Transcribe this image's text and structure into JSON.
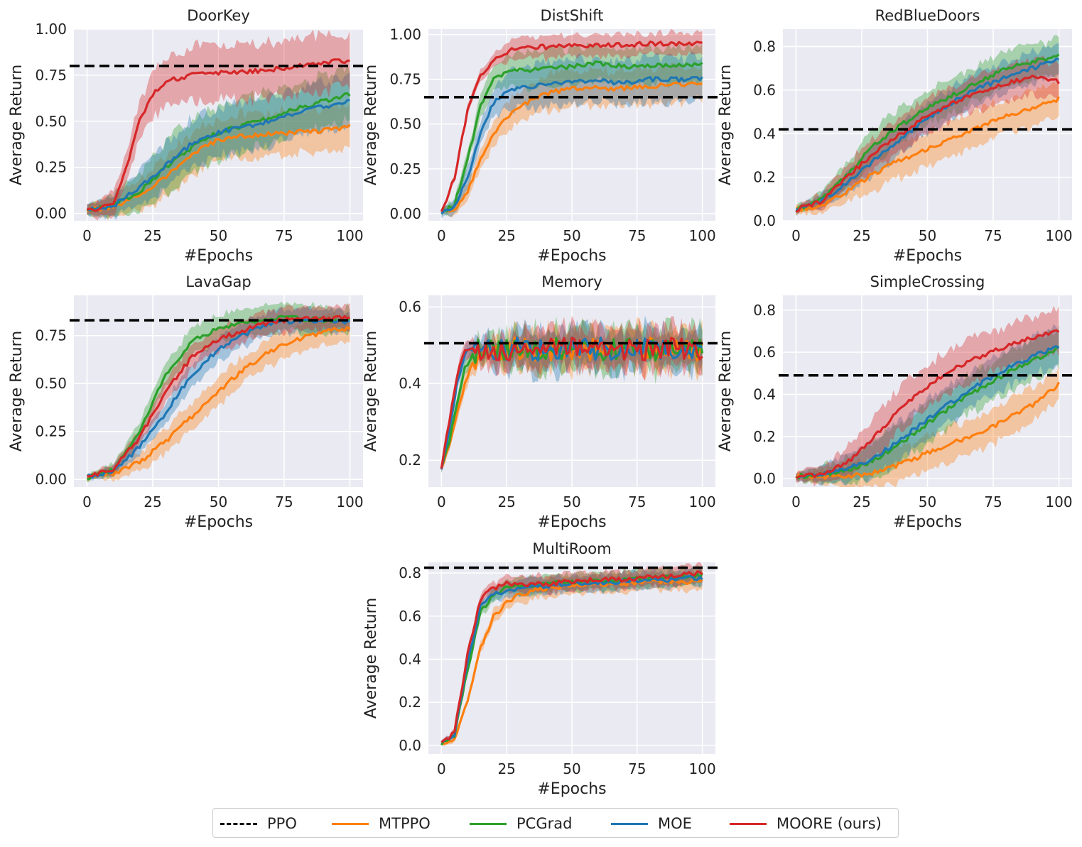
{
  "legend": {
    "ppo": "PPO",
    "mtppo": "MTPPO",
    "pcgrad": "PCGrad",
    "moe": "MOE",
    "moore": "MOORE (ours)"
  },
  "colors": {
    "ppo": "#000000",
    "mtppo": "#ff7f0e",
    "pcgrad": "#2ca02c",
    "moe": "#1f77b4",
    "moore": "#d62728",
    "panel_bg": "#eaeaf2",
    "grid": "#ffffff"
  },
  "chart_data": [
    {
      "type": "line",
      "title": "DoorKey",
      "xlabel": "#Epochs",
      "ylabel": "Average Return",
      "xlim": [
        -5,
        105
      ],
      "ylim": [
        -0.04,
        1.0
      ],
      "xticks": [
        0,
        25,
        50,
        75,
        100
      ],
      "yticks": [
        0.0,
        0.25,
        0.5,
        0.75,
        1.0
      ],
      "ytick_labels": [
        "0.00",
        "0.25",
        "0.50",
        "0.75",
        "1.00"
      ],
      "ppo_baseline": 0.8,
      "series": [
        {
          "name": "MTPPO",
          "x": [
            0,
            10,
            20,
            30,
            40,
            50,
            60,
            70,
            80,
            90,
            100
          ],
          "mean": [
            0.02,
            0.03,
            0.1,
            0.2,
            0.32,
            0.4,
            0.42,
            0.43,
            0.44,
            0.45,
            0.47
          ],
          "band": 0.12
        },
        {
          "name": "PCGrad",
          "x": [
            0,
            10,
            20,
            30,
            40,
            50,
            60,
            70,
            80,
            90,
            100
          ],
          "mean": [
            0.02,
            0.04,
            0.12,
            0.25,
            0.36,
            0.44,
            0.48,
            0.52,
            0.57,
            0.61,
            0.65
          ],
          "band": 0.14
        },
        {
          "name": "MOE",
          "x": [
            0,
            10,
            20,
            30,
            40,
            50,
            60,
            70,
            80,
            90,
            100
          ],
          "mean": [
            0.02,
            0.04,
            0.14,
            0.26,
            0.38,
            0.44,
            0.47,
            0.5,
            0.55,
            0.58,
            0.61
          ],
          "band": 0.13
        },
        {
          "name": "MOORE (ours)",
          "x": [
            0,
            5,
            10,
            15,
            20,
            25,
            30,
            40,
            50,
            60,
            70,
            80,
            90,
            100
          ],
          "mean": [
            0.02,
            0.02,
            0.06,
            0.25,
            0.5,
            0.65,
            0.72,
            0.75,
            0.76,
            0.77,
            0.78,
            0.8,
            0.82,
            0.83
          ],
          "band": 0.15
        }
      ]
    },
    {
      "type": "line",
      "title": "DistShift",
      "xlabel": "#Epochs",
      "ylabel": "Average Return",
      "xlim": [
        -5,
        105
      ],
      "ylim": [
        -0.04,
        1.03
      ],
      "xticks": [
        0,
        25,
        50,
        75,
        100
      ],
      "yticks": [
        0.0,
        0.25,
        0.5,
        0.75,
        1.0
      ],
      "ytick_labels": [
        "0.00",
        "0.25",
        "0.50",
        "0.75",
        "1.00"
      ],
      "ppo_baseline": 0.65,
      "series": [
        {
          "name": "MTPPO",
          "x": [
            0,
            5,
            10,
            15,
            20,
            25,
            30,
            40,
            50,
            60,
            70,
            80,
            90,
            100
          ],
          "mean": [
            0.01,
            0.02,
            0.12,
            0.3,
            0.45,
            0.54,
            0.6,
            0.67,
            0.7,
            0.7,
            0.7,
            0.71,
            0.72,
            0.72
          ],
          "band": 0.1
        },
        {
          "name": "PCGrad",
          "x": [
            0,
            5,
            10,
            15,
            20,
            25,
            30,
            40,
            50,
            60,
            70,
            80,
            90,
            100
          ],
          "mean": [
            0.01,
            0.05,
            0.3,
            0.6,
            0.75,
            0.79,
            0.8,
            0.81,
            0.82,
            0.84,
            0.82,
            0.83,
            0.83,
            0.83
          ],
          "band": 0.1
        },
        {
          "name": "MOE",
          "x": [
            0,
            5,
            10,
            15,
            20,
            25,
            30,
            40,
            50,
            60,
            70,
            80,
            90,
            100
          ],
          "mean": [
            0.01,
            0.04,
            0.2,
            0.45,
            0.62,
            0.68,
            0.7,
            0.72,
            0.74,
            0.74,
            0.73,
            0.75,
            0.75,
            0.75
          ],
          "band": 0.12
        },
        {
          "name": "MOORE (ours)",
          "x": [
            0,
            5,
            10,
            15,
            20,
            25,
            30,
            40,
            50,
            60,
            70,
            80,
            90,
            100
          ],
          "mean": [
            0.01,
            0.2,
            0.58,
            0.77,
            0.85,
            0.9,
            0.93,
            0.93,
            0.94,
            0.94,
            0.94,
            0.95,
            0.95,
            0.95
          ],
          "band": 0.06
        }
      ]
    },
    {
      "type": "line",
      "title": "RedBlueDoors",
      "xlabel": "#Epochs",
      "ylabel": "Average Return",
      "xlim": [
        -5,
        105
      ],
      "ylim": [
        0.0,
        0.88
      ],
      "xticks": [
        0,
        25,
        50,
        75,
        100
      ],
      "yticks": [
        0.0,
        0.2,
        0.4,
        0.6,
        0.8
      ],
      "ytick_labels": [
        "0.0",
        "0.2",
        "0.4",
        "0.6",
        "0.8"
      ],
      "ppo_baseline": 0.42,
      "series": [
        {
          "name": "MTPPO",
          "x": [
            0,
            10,
            20,
            30,
            40,
            50,
            60,
            70,
            80,
            90,
            100
          ],
          "mean": [
            0.05,
            0.07,
            0.14,
            0.22,
            0.28,
            0.33,
            0.38,
            0.43,
            0.48,
            0.52,
            0.56
          ],
          "band": 0.08
        },
        {
          "name": "PCGrad",
          "x": [
            0,
            10,
            20,
            30,
            40,
            50,
            60,
            70,
            80,
            90,
            100
          ],
          "mean": [
            0.05,
            0.1,
            0.22,
            0.35,
            0.44,
            0.52,
            0.58,
            0.64,
            0.7,
            0.73,
            0.76
          ],
          "band": 0.08
        },
        {
          "name": "MOE",
          "x": [
            0,
            10,
            20,
            30,
            40,
            50,
            60,
            70,
            80,
            90,
            100
          ],
          "mean": [
            0.05,
            0.09,
            0.18,
            0.28,
            0.38,
            0.47,
            0.55,
            0.61,
            0.66,
            0.7,
            0.74
          ],
          "band": 0.07
        },
        {
          "name": "MOORE (ours)",
          "x": [
            0,
            10,
            20,
            30,
            40,
            50,
            60,
            70,
            80,
            90,
            100
          ],
          "mean": [
            0.05,
            0.09,
            0.21,
            0.31,
            0.4,
            0.48,
            0.54,
            0.59,
            0.63,
            0.66,
            0.64
          ],
          "band": 0.08
        }
      ]
    },
    {
      "type": "line",
      "title": "LavaGap",
      "xlabel": "#Epochs",
      "ylabel": "Average Return",
      "xlim": [
        -5,
        105
      ],
      "ylim": [
        -0.04,
        0.96
      ],
      "xticks": [
        0,
        25,
        50,
        75,
        100
      ],
      "yticks": [
        0.0,
        0.25,
        0.5,
        0.75
      ],
      "ytick_labels": [
        "0.00",
        "0.25",
        "0.50",
        "0.75"
      ],
      "ppo_baseline": 0.83,
      "series": [
        {
          "name": "MTPPO",
          "x": [
            0,
            10,
            20,
            30,
            40,
            50,
            60,
            70,
            80,
            90,
            100
          ],
          "mean": [
            0.01,
            0.03,
            0.09,
            0.2,
            0.33,
            0.46,
            0.58,
            0.67,
            0.73,
            0.77,
            0.79
          ],
          "band": 0.07
        },
        {
          "name": "PCGrad",
          "x": [
            0,
            10,
            20,
            30,
            40,
            50,
            60,
            70,
            80,
            90,
            100
          ],
          "mean": [
            0.01,
            0.05,
            0.25,
            0.55,
            0.72,
            0.79,
            0.82,
            0.84,
            0.84,
            0.83,
            0.83
          ],
          "band": 0.07
        },
        {
          "name": "MOE",
          "x": [
            0,
            10,
            20,
            30,
            40,
            50,
            60,
            70,
            80,
            90,
            100
          ],
          "mean": [
            0.01,
            0.04,
            0.17,
            0.35,
            0.55,
            0.68,
            0.76,
            0.81,
            0.83,
            0.83,
            0.82
          ],
          "band": 0.06
        },
        {
          "name": "MOORE (ours)",
          "x": [
            0,
            10,
            20,
            30,
            40,
            50,
            60,
            70,
            80,
            90,
            100
          ],
          "mean": [
            0.01,
            0.05,
            0.22,
            0.46,
            0.64,
            0.73,
            0.78,
            0.82,
            0.84,
            0.84,
            0.84
          ],
          "band": 0.06
        }
      ]
    },
    {
      "type": "line",
      "title": "Memory",
      "xlabel": "#Epochs",
      "ylabel": "Average Return",
      "xlim": [
        -5,
        105
      ],
      "ylim": [
        0.13,
        0.63
      ],
      "xticks": [
        0,
        25,
        50,
        75,
        100
      ],
      "yticks": [
        0.2,
        0.4,
        0.6
      ],
      "ytick_labels": [
        "0.2",
        "0.4",
        "0.6"
      ],
      "ppo_baseline": 0.505,
      "series": [
        {
          "name": "MTPPO",
          "x": [
            0,
            3,
            6,
            9,
            12,
            15,
            20,
            30,
            40,
            50,
            60,
            70,
            80,
            90,
            100
          ],
          "mean": [
            0.18,
            0.24,
            0.32,
            0.4,
            0.46,
            0.48,
            0.49,
            0.49,
            0.49,
            0.49,
            0.49,
            0.49,
            0.49,
            0.49,
            0.49
          ],
          "band": 0.05
        },
        {
          "name": "PCGrad",
          "x": [
            0,
            3,
            6,
            9,
            12,
            15,
            20,
            30,
            40,
            50,
            60,
            70,
            80,
            90,
            100
          ],
          "mean": [
            0.18,
            0.25,
            0.35,
            0.44,
            0.48,
            0.49,
            0.49,
            0.49,
            0.49,
            0.49,
            0.49,
            0.49,
            0.49,
            0.49,
            0.49
          ],
          "band": 0.05
        },
        {
          "name": "MOE",
          "x": [
            0,
            3,
            6,
            9,
            12,
            15,
            20,
            30,
            40,
            50,
            60,
            70,
            80,
            90,
            100
          ],
          "mean": [
            0.18,
            0.28,
            0.4,
            0.48,
            0.49,
            0.49,
            0.49,
            0.49,
            0.49,
            0.49,
            0.49,
            0.49,
            0.49,
            0.49,
            0.49
          ],
          "band": 0.05
        },
        {
          "name": "MOORE (ours)",
          "x": [
            0,
            3,
            6,
            9,
            12,
            15,
            20,
            30,
            40,
            50,
            60,
            70,
            80,
            90,
            100
          ],
          "mean": [
            0.18,
            0.3,
            0.42,
            0.49,
            0.49,
            0.49,
            0.49,
            0.49,
            0.49,
            0.49,
            0.49,
            0.49,
            0.49,
            0.49,
            0.49
          ],
          "band": 0.05
        }
      ]
    },
    {
      "type": "line",
      "title": "SimpleCrossing",
      "xlabel": "#Epochs",
      "ylabel": "Average Return",
      "xlim": [
        -5,
        105
      ],
      "ylim": [
        -0.04,
        0.87
      ],
      "xticks": [
        0,
        25,
        50,
        75,
        100
      ],
      "yticks": [
        0.0,
        0.2,
        0.4,
        0.6,
        0.8
      ],
      "ytick_labels": [
        "0.0",
        "0.2",
        "0.4",
        "0.6",
        "0.8"
      ],
      "ppo_baseline": 0.49,
      "series": [
        {
          "name": "MTPPO",
          "x": [
            0,
            10,
            20,
            30,
            40,
            50,
            60,
            70,
            80,
            90,
            100
          ],
          "mean": [
            0.01,
            0.01,
            0.01,
            0.03,
            0.07,
            0.12,
            0.17,
            0.22,
            0.28,
            0.35,
            0.45
          ],
          "band": 0.08
        },
        {
          "name": "PCGrad",
          "x": [
            0,
            10,
            20,
            30,
            40,
            50,
            60,
            70,
            80,
            90,
            100
          ],
          "mean": [
            0.01,
            0.02,
            0.04,
            0.09,
            0.17,
            0.26,
            0.35,
            0.43,
            0.5,
            0.56,
            0.62
          ],
          "band": 0.09
        },
        {
          "name": "MOE",
          "x": [
            0,
            10,
            20,
            30,
            40,
            50,
            60,
            70,
            80,
            90,
            100
          ],
          "mean": [
            0.01,
            0.02,
            0.05,
            0.1,
            0.19,
            0.28,
            0.37,
            0.45,
            0.52,
            0.58,
            0.63
          ],
          "band": 0.09
        },
        {
          "name": "MOORE (ours)",
          "x": [
            0,
            10,
            20,
            30,
            40,
            50,
            60,
            70,
            80,
            90,
            100
          ],
          "mean": [
            0.01,
            0.02,
            0.08,
            0.2,
            0.34,
            0.44,
            0.52,
            0.58,
            0.63,
            0.67,
            0.7
          ],
          "band": 0.1
        }
      ]
    },
    {
      "type": "line",
      "title": "MultiRoom",
      "xlabel": "#Epochs",
      "ylabel": "Average Return",
      "xlim": [
        -5,
        105
      ],
      "ylim": [
        -0.04,
        0.85
      ],
      "xticks": [
        0,
        25,
        50,
        75,
        100
      ],
      "yticks": [
        0.0,
        0.2,
        0.4,
        0.6,
        0.8
      ],
      "ytick_labels": [
        "0.0",
        "0.2",
        "0.4",
        "0.6",
        "0.8"
      ],
      "ppo_baseline": 0.825,
      "series": [
        {
          "name": "MTPPO",
          "x": [
            0,
            5,
            10,
            15,
            20,
            25,
            30,
            40,
            50,
            60,
            70,
            80,
            90,
            100
          ],
          "mean": [
            0.01,
            0.03,
            0.2,
            0.45,
            0.6,
            0.66,
            0.7,
            0.73,
            0.74,
            0.75,
            0.75,
            0.76,
            0.76,
            0.76
          ],
          "band": 0.04
        },
        {
          "name": "PCGrad",
          "x": [
            0,
            5,
            10,
            15,
            20,
            25,
            30,
            40,
            50,
            60,
            70,
            80,
            90,
            100
          ],
          "mean": [
            0.01,
            0.05,
            0.35,
            0.62,
            0.7,
            0.73,
            0.74,
            0.75,
            0.76,
            0.76,
            0.77,
            0.78,
            0.78,
            0.79
          ],
          "band": 0.04
        },
        {
          "name": "MOE",
          "x": [
            0,
            5,
            10,
            15,
            20,
            25,
            30,
            40,
            50,
            60,
            70,
            80,
            90,
            100
          ],
          "mean": [
            0.01,
            0.05,
            0.38,
            0.65,
            0.7,
            0.72,
            0.73,
            0.74,
            0.75,
            0.75,
            0.76,
            0.77,
            0.77,
            0.78
          ],
          "band": 0.04
        },
        {
          "name": "MOORE (ours)",
          "x": [
            0,
            5,
            10,
            15,
            20,
            25,
            30,
            40,
            50,
            60,
            70,
            80,
            90,
            100
          ],
          "mean": [
            0.01,
            0.06,
            0.42,
            0.68,
            0.73,
            0.75,
            0.75,
            0.75,
            0.76,
            0.77,
            0.77,
            0.78,
            0.79,
            0.8
          ],
          "band": 0.04
        }
      ]
    }
  ]
}
